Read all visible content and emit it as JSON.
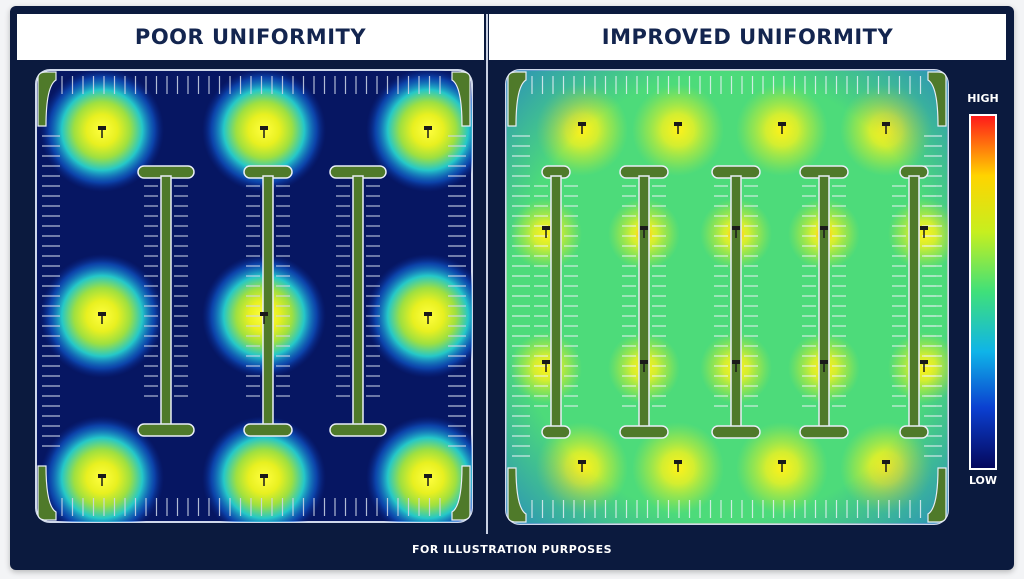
{
  "panels": [
    {
      "title": "POOR UNIFORMITY",
      "mode": "poor"
    },
    {
      "title": "IMPROVED UNIFORMITY",
      "mode": "improved"
    }
  ],
  "legend": {
    "high_label": "HIGH",
    "low_label": "LOW",
    "gradient_colors": [
      "#ff1a1a",
      "#ffd400",
      "#c6ef1f",
      "#3fe07a",
      "#0fb4e8",
      "#0b3fd0",
      "#05085c"
    ]
  },
  "footer": {
    "text": "FOR ILLUSTRATION PURPOSES"
  },
  "colors": {
    "background": "#0b1a3e",
    "low_light": "#071a6e",
    "medium_light": "#2bd4a0",
    "high_light": "#ffef00",
    "island_green": "#4f7a2a"
  }
}
